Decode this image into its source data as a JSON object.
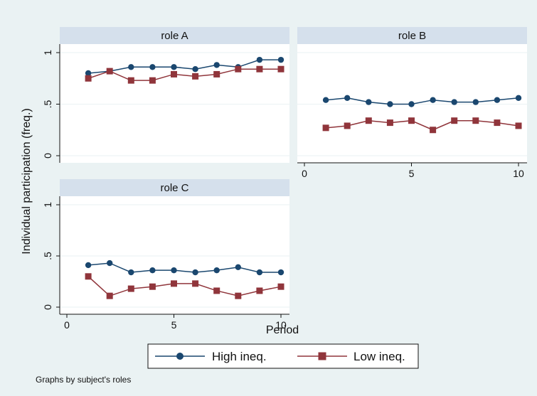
{
  "chart_data": {
    "type": "line",
    "layout": "panels-by-group",
    "ylabel": "Individual participation (freq.)",
    "xlabel": "Period",
    "xlim": [
      0,
      10
    ],
    "ylim": [
      0,
      1
    ],
    "x_ticks": [
      0,
      5,
      10
    ],
    "x_tick_labels": [
      "0",
      "5",
      "10"
    ],
    "y_ticks": [
      0,
      0.5,
      1
    ],
    "y_tick_labels": [
      "0",
      ".5",
      "1"
    ],
    "grid": true,
    "legend_position": "bottom",
    "note": "Graphs by subject's roles",
    "series_style": [
      {
        "name": "High ineq.",
        "color": "#1a476f",
        "marker": "circle"
      },
      {
        "name": "Low ineq.",
        "color": "#90353b",
        "marker": "square"
      }
    ],
    "x": [
      1,
      2,
      3,
      4,
      5,
      6,
      7,
      8,
      9,
      10
    ],
    "panels": [
      {
        "title": "role A",
        "series": [
          {
            "name": "High ineq.",
            "values": [
              0.8,
              0.82,
              0.86,
              0.86,
              0.86,
              0.84,
              0.88,
              0.86,
              0.93,
              0.93
            ]
          },
          {
            "name": "Low ineq.",
            "values": [
              0.75,
              0.82,
              0.73,
              0.73,
              0.79,
              0.77,
              0.79,
              0.84,
              0.84,
              0.84
            ]
          }
        ]
      },
      {
        "title": "role B",
        "series": [
          {
            "name": "High ineq.",
            "values": [
              0.54,
              0.56,
              0.52,
              0.5,
              0.5,
              0.54,
              0.52,
              0.52,
              0.54,
              0.56
            ]
          },
          {
            "name": "Low ineq.",
            "values": [
              0.27,
              0.29,
              0.34,
              0.32,
              0.34,
              0.25,
              0.34,
              0.34,
              0.32,
              0.29
            ]
          }
        ]
      },
      {
        "title": "role C",
        "series": [
          {
            "name": "High ineq.",
            "values": [
              0.41,
              0.43,
              0.34,
              0.36,
              0.36,
              0.34,
              0.36,
              0.39,
              0.34,
              0.34
            ]
          },
          {
            "name": "Low ineq.",
            "values": [
              0.3,
              0.11,
              0.18,
              0.2,
              0.23,
              0.23,
              0.16,
              0.11,
              0.16,
              0.2
            ]
          }
        ]
      }
    ]
  }
}
